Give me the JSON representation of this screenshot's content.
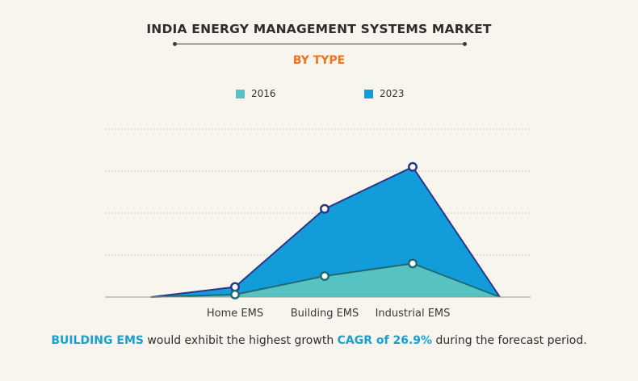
{
  "header": {
    "title": "INDIA ENERGY MANAGEMENT SYSTEMS MARKET",
    "subtitle": "BY TYPE"
  },
  "colors": {
    "s2016_fill": "#56c2c1",
    "s2016_line": "#1f6b73",
    "s2023_fill": "#139cda",
    "s2023_line": "#2c3688",
    "title_accent": "#f0731e",
    "highlight": "#1a9fcf"
  },
  "chart_data": {
    "type": "area",
    "categories": [
      "Home EMS",
      "Building EMS",
      "Industrial EMS"
    ],
    "series": [
      {
        "name": "2016",
        "values": [
          0.3,
          2.5,
          4.0
        ]
      },
      {
        "name": "2023",
        "values": [
          1.2,
          10.5,
          15.5
        ]
      }
    ],
    "ylim": [
      0,
      20
    ],
    "grid": true,
    "legend_position": "top-center",
    "area_ends_at_zero": true
  },
  "footnote": {
    "part1": "BUILDING EMS",
    "part2": " would exhibit the highest growth ",
    "part3": "CAGR of 26.9%",
    "part4": " during the forecast period."
  }
}
